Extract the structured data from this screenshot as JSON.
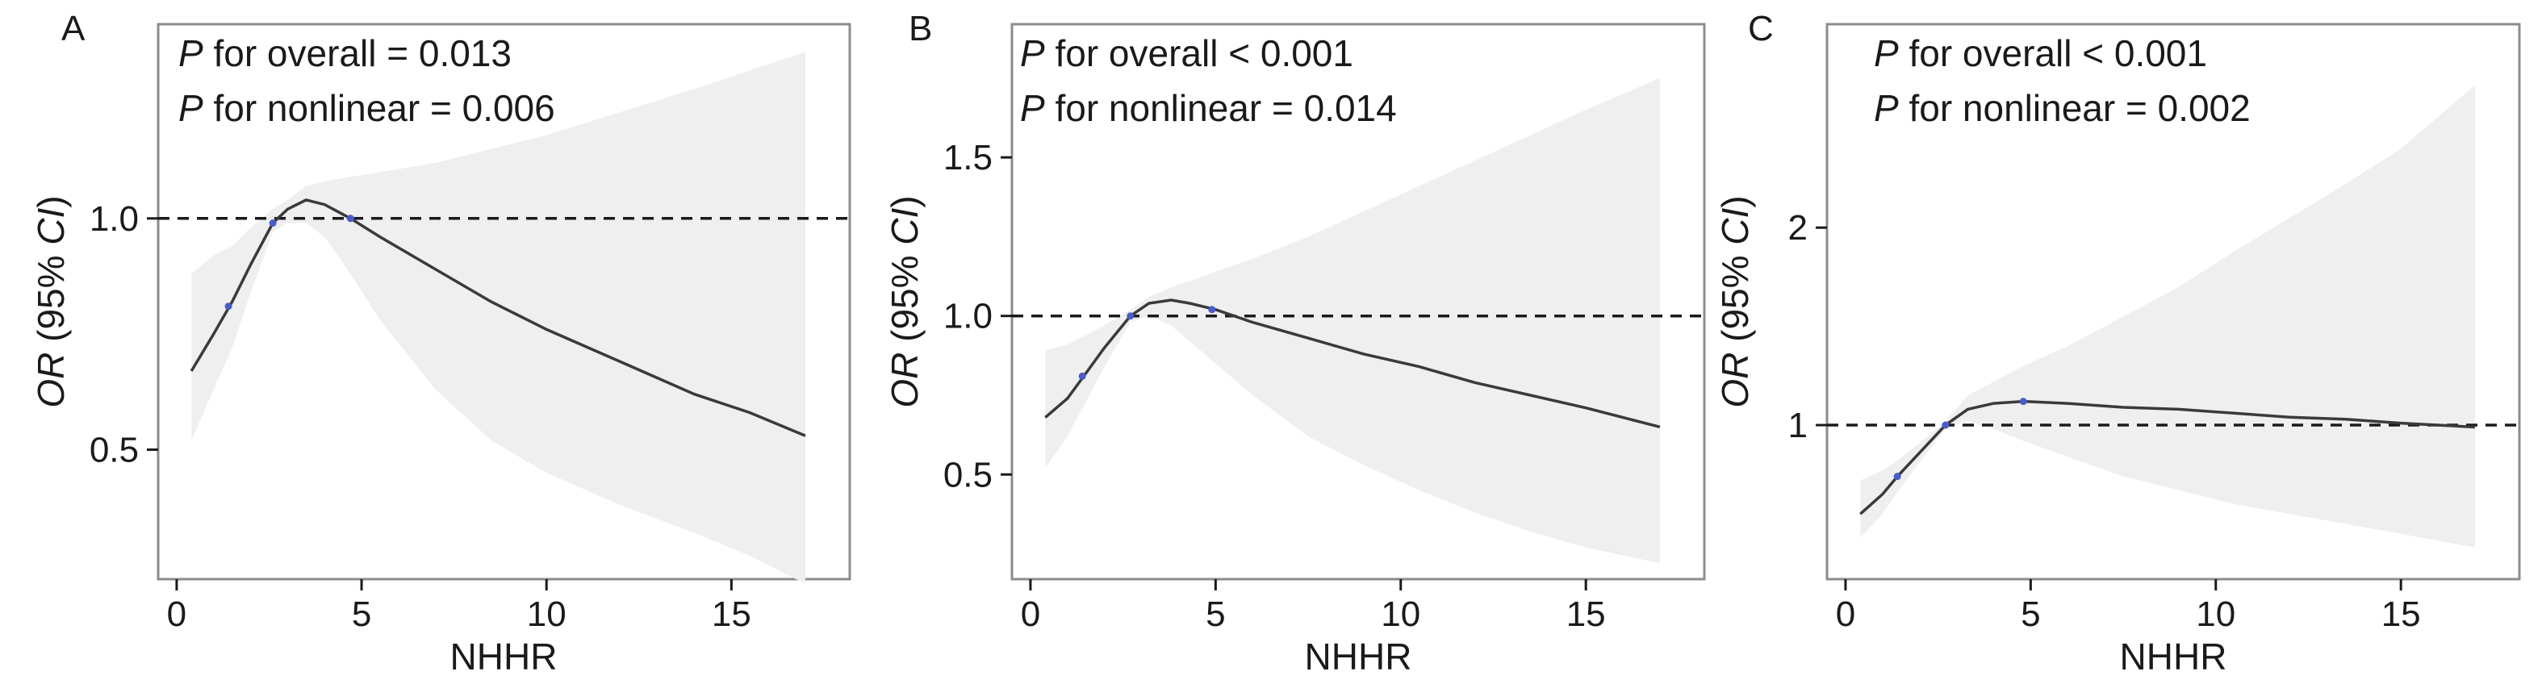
{
  "chart_data": [
    {
      "panel_label": "A",
      "type": "line",
      "annotations": [
        {
          "italic": "P",
          "text": " for overall = 0.013"
        },
        {
          "italic": "P",
          "text": " for nonlinear = 0.006"
        }
      ],
      "xlabel": "NHHR",
      "ylabel_italic": "OR",
      "ylabel_rest": " (95% ",
      "ylabel_italic2": "CI",
      "ylabel_close": ")",
      "xlim": [
        -0.5,
        18.2
      ],
      "ylim": [
        0.22,
        1.42
      ],
      "xticks": [
        0,
        5,
        10,
        15
      ],
      "yticks": [
        0.5,
        1.0
      ],
      "ytick_labels": [
        "0.5",
        "1.0"
      ],
      "reference_y": 1.0,
      "series": [
        {
          "x": [
            0.4,
            1.0,
            1.5,
            2.0,
            2.6,
            3.0,
            3.5,
            4.0,
            4.7,
            5.5,
            7.0,
            8.5,
            10.0,
            12.0,
            14.0,
            15.5,
            17.0
          ],
          "y": [
            0.67,
            0.75,
            0.82,
            0.9,
            0.99,
            1.02,
            1.04,
            1.03,
            1.0,
            0.96,
            0.89,
            0.82,
            0.76,
            0.69,
            0.62,
            0.58,
            0.53
          ],
          "ci_lower": [
            0.52,
            0.63,
            0.72,
            0.84,
            0.97,
            0.99,
            0.99,
            0.96,
            0.88,
            0.78,
            0.63,
            0.52,
            0.45,
            0.38,
            0.32,
            0.27,
            0.21
          ],
          "ci_upper": [
            0.88,
            0.92,
            0.94,
            0.98,
            1.02,
            1.04,
            1.07,
            1.08,
            1.09,
            1.1,
            1.12,
            1.15,
            1.18,
            1.23,
            1.28,
            1.32,
            1.36
          ]
        }
      ],
      "knots": [
        {
          "x": 1.4,
          "y": 0.81
        },
        {
          "x": 2.6,
          "y": 0.99
        },
        {
          "x": 4.7,
          "y": 1.0
        }
      ]
    },
    {
      "panel_label": "B",
      "type": "line",
      "annotations": [
        {
          "italic": "P",
          "text": " for overall < 0.001"
        },
        {
          "italic": "P",
          "text": " for nonlinear = 0.014"
        }
      ],
      "xlabel": "NHHR",
      "ylabel_italic": "OR",
      "ylabel_rest": " (95% ",
      "ylabel_italic2": "CI",
      "ylabel_close": ")",
      "xlim": [
        -0.5,
        18.2
      ],
      "ylim": [
        0.17,
        1.92
      ],
      "xticks": [
        0,
        5,
        10,
        15
      ],
      "yticks": [
        0.5,
        1.0,
        1.5
      ],
      "ytick_labels": [
        "0.5",
        "1.0",
        "1.5"
      ],
      "reference_y": 1.0,
      "series": [
        {
          "x": [
            0.4,
            1.0,
            1.5,
            2.0,
            2.7,
            3.2,
            3.8,
            4.3,
            5.0,
            6.0,
            7.5,
            9.0,
            10.5,
            12.0,
            13.5,
            15.0,
            17.0
          ],
          "y": [
            0.68,
            0.74,
            0.82,
            0.9,
            1.0,
            1.04,
            1.05,
            1.04,
            1.02,
            0.98,
            0.93,
            0.88,
            0.84,
            0.79,
            0.75,
            0.71,
            0.65
          ],
          "ci_lower": [
            0.52,
            0.62,
            0.73,
            0.84,
            0.98,
            1.0,
            0.97,
            0.92,
            0.85,
            0.75,
            0.62,
            0.53,
            0.45,
            0.38,
            0.32,
            0.27,
            0.22
          ],
          "ci_upper": [
            0.89,
            0.91,
            0.94,
            0.97,
            1.02,
            1.06,
            1.09,
            1.11,
            1.14,
            1.18,
            1.25,
            1.33,
            1.41,
            1.49,
            1.57,
            1.65,
            1.75
          ]
        }
      ],
      "knots": [
        {
          "x": 1.4,
          "y": 0.81
        },
        {
          "x": 2.7,
          "y": 1.0
        },
        {
          "x": 4.9,
          "y": 1.02
        }
      ]
    },
    {
      "panel_label": "C",
      "type": "line",
      "annotations": [
        {
          "italic": "P",
          "text": " for overall < 0.001"
        },
        {
          "italic": "P",
          "text": " for nonlinear = 0.002"
        }
      ],
      "xlabel": "NHHR",
      "ylabel_italic": "OR",
      "ylabel_rest": " (95% ",
      "ylabel_italic2": "CI",
      "ylabel_close": ")",
      "xlim": [
        -0.5,
        18.2
      ],
      "ylim": [
        0.22,
        3.03
      ],
      "xticks": [
        0,
        5,
        10,
        15
      ],
      "yticks": [
        1,
        2
      ],
      "ytick_labels": [
        "1",
        "2"
      ],
      "reference_y": 1.0,
      "series": [
        {
          "x": [
            0.4,
            1.0,
            1.4,
            2.0,
            2.7,
            3.3,
            4.0,
            4.8,
            6.0,
            7.5,
            9.0,
            10.5,
            12.0,
            13.5,
            15.0,
            17.0
          ],
          "y": [
            0.55,
            0.65,
            0.74,
            0.86,
            1.0,
            1.08,
            1.11,
            1.12,
            1.11,
            1.09,
            1.08,
            1.06,
            1.04,
            1.03,
            1.01,
            0.99
          ],
          "ci_lower": [
            0.43,
            0.55,
            0.66,
            0.81,
            0.98,
            1.02,
            0.98,
            0.92,
            0.84,
            0.74,
            0.67,
            0.6,
            0.55,
            0.5,
            0.45,
            0.38
          ],
          "ci_upper": [
            0.72,
            0.77,
            0.82,
            0.91,
            1.02,
            1.15,
            1.22,
            1.3,
            1.4,
            1.55,
            1.7,
            1.88,
            2.05,
            2.22,
            2.4,
            2.72
          ]
        }
      ],
      "knots": [
        {
          "x": 1.4,
          "y": 0.74
        },
        {
          "x": 2.7,
          "y": 1.0
        },
        {
          "x": 4.8,
          "y": 1.12
        }
      ]
    }
  ]
}
